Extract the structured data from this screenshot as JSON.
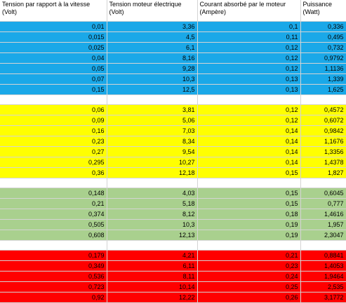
{
  "headers": [
    {
      "title": "Tension par rapport à la vitesse",
      "unit": "(Volt)"
    },
    {
      "title": "Tension moteur électrique",
      "unit": "(Volt)"
    },
    {
      "title": "Courant absorbé par le moteur",
      "unit": "(Ampère)"
    },
    {
      "title": "Puissance",
      "unit": "(Watt)"
    }
  ],
  "colors": {
    "blue": "#1aa8e8",
    "yellow": "#ffff00",
    "green": "#a9d08e",
    "red": "#ff0000"
  },
  "groups": [
    {
      "color": "blue",
      "rows": [
        [
          "0,01",
          "3,36",
          "0,1",
          "0,336"
        ],
        [
          "0,015",
          "4,5",
          "0,11",
          "0,495"
        ],
        [
          "0,025",
          "6,1",
          "0,12",
          "0,732"
        ],
        [
          "0,04",
          "8,16",
          "0,12",
          "0,9792"
        ],
        [
          "0,05",
          "9,28",
          "0,12",
          "1,1136"
        ],
        [
          "0,07",
          "10,3",
          "0,13",
          "1,339"
        ],
        [
          "0,15",
          "12,5",
          "0,13",
          "1,625"
        ]
      ]
    },
    {
      "color": "yellow",
      "rows": [
        [
          "0,06",
          "3,81",
          "0,12",
          "0,4572"
        ],
        [
          "0,09",
          "5,06",
          "0,12",
          "0,6072"
        ],
        [
          "0,16",
          "7,03",
          "0,14",
          "0,9842"
        ],
        [
          "0,23",
          "8,34",
          "0,14",
          "1,1676"
        ],
        [
          "0,27",
          "9,54",
          "0,14",
          "1,3356"
        ],
        [
          "0,295",
          "10,27",
          "0,14",
          "1,4378"
        ],
        [
          "0,36",
          "12,18",
          "0,15",
          "1,827"
        ]
      ]
    },
    {
      "color": "green",
      "rows": [
        [
          "0,148",
          "4,03",
          "0,15",
          "0,6045"
        ],
        [
          "0,21",
          "5,18",
          "0,15",
          "0,777"
        ],
        [
          "0,374",
          "8,12",
          "0,18",
          "1,4616"
        ],
        [
          "0,505",
          "10,3",
          "0,19",
          "1,957"
        ],
        [
          "0,608",
          "12,13",
          "0,19",
          "2,3047"
        ]
      ]
    },
    {
      "color": "red",
      "rows": [
        [
          "0,179",
          "4,21",
          "0,21",
          "0,8841"
        ],
        [
          "0,349",
          "6,11",
          "0,23",
          "1,4053"
        ],
        [
          "0,536",
          "8,11",
          "0,24",
          "1,9464"
        ],
        [
          "0,723",
          "10,14",
          "0,25",
          "2,535"
        ],
        [
          "0,92",
          "12,22",
          "0,26",
          "3,1772"
        ]
      ]
    }
  ]
}
